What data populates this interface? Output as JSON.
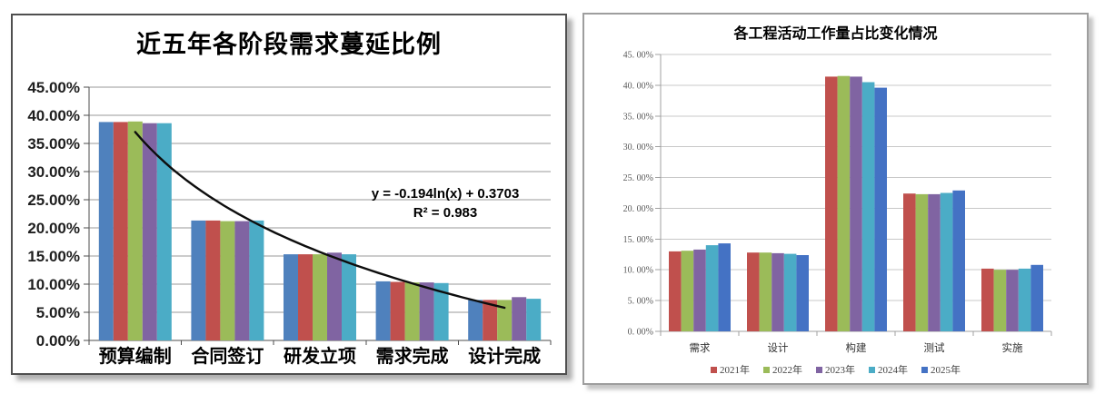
{
  "chart_data": [
    {
      "type": "bar",
      "title": "近五年各阶段需求蔓延比例",
      "ylabel": "",
      "xlabel": "",
      "axis": {
        "min": 0,
        "max": 45,
        "step": 5,
        "unit": "%",
        "tick_labels": [
          "45.00%",
          "40.00%",
          "35.00%",
          "30.00%",
          "25.00%",
          "20.00%",
          "15.00%",
          "10.00%",
          "5.00%",
          "0.00%"
        ]
      },
      "grid": "on",
      "categories": [
        "预算编制",
        "合同签订",
        "研发立项",
        "需求完成",
        "设计完成"
      ],
      "series": [
        {
          "color": "#4F81BD",
          "values": [
            38.8,
            21.3,
            15.3,
            10.5,
            7.2
          ]
        },
        {
          "color": "#C0504D",
          "values": [
            38.8,
            21.3,
            15.3,
            10.4,
            7.2
          ]
        },
        {
          "color": "#9BBB59",
          "values": [
            38.9,
            21.2,
            15.3,
            10.3,
            7.2
          ]
        },
        {
          "color": "#8064A2",
          "values": [
            38.6,
            21.2,
            15.6,
            10.3,
            7.7
          ]
        },
        {
          "color": "#4BACC6",
          "values": [
            38.6,
            21.3,
            15.3,
            10.2,
            7.4
          ]
        }
      ],
      "trendline": {
        "a": -0.194,
        "b": 0.3703,
        "color": "#0d0d0d",
        "equation": "y = -0.194ln(x) + 0.3703",
        "r_squared": "R² = 0.983"
      }
    },
    {
      "type": "bar",
      "title": "各工程活动工作量占比变化情况",
      "ylabel": "",
      "xlabel": "",
      "axis": {
        "min": 0,
        "max": 45,
        "step": 5,
        "unit": "%",
        "tick_labels": [
          "45. 00%",
          "40. 00%",
          "35. 00%",
          "30. 00%",
          "25. 00%",
          "20. 00%",
          "15. 00%",
          "10. 00%",
          "5. 00%",
          "0. 00%"
        ]
      },
      "grid": "on",
      "legend_position": "bottom",
      "categories": [
        "需求",
        "设计",
        "构建",
        "测试",
        "实施"
      ],
      "series": [
        {
          "name": "2021年",
          "color": "#C0504D",
          "values": [
            13.0,
            12.8,
            41.4,
            22.4,
            10.2
          ]
        },
        {
          "name": "2022年",
          "color": "#9BBB59",
          "values": [
            13.1,
            12.8,
            41.5,
            22.3,
            10.0
          ]
        },
        {
          "name": "2023年",
          "color": "#8064A2",
          "values": [
            13.3,
            12.7,
            41.4,
            22.3,
            10.0
          ]
        },
        {
          "name": "2024年",
          "color": "#4BACC6",
          "values": [
            14.0,
            12.6,
            40.5,
            22.5,
            10.2
          ]
        },
        {
          "name": "2025年",
          "color": "#4472C4",
          "values": [
            14.3,
            12.4,
            39.6,
            22.9,
            10.8
          ]
        }
      ]
    }
  ]
}
